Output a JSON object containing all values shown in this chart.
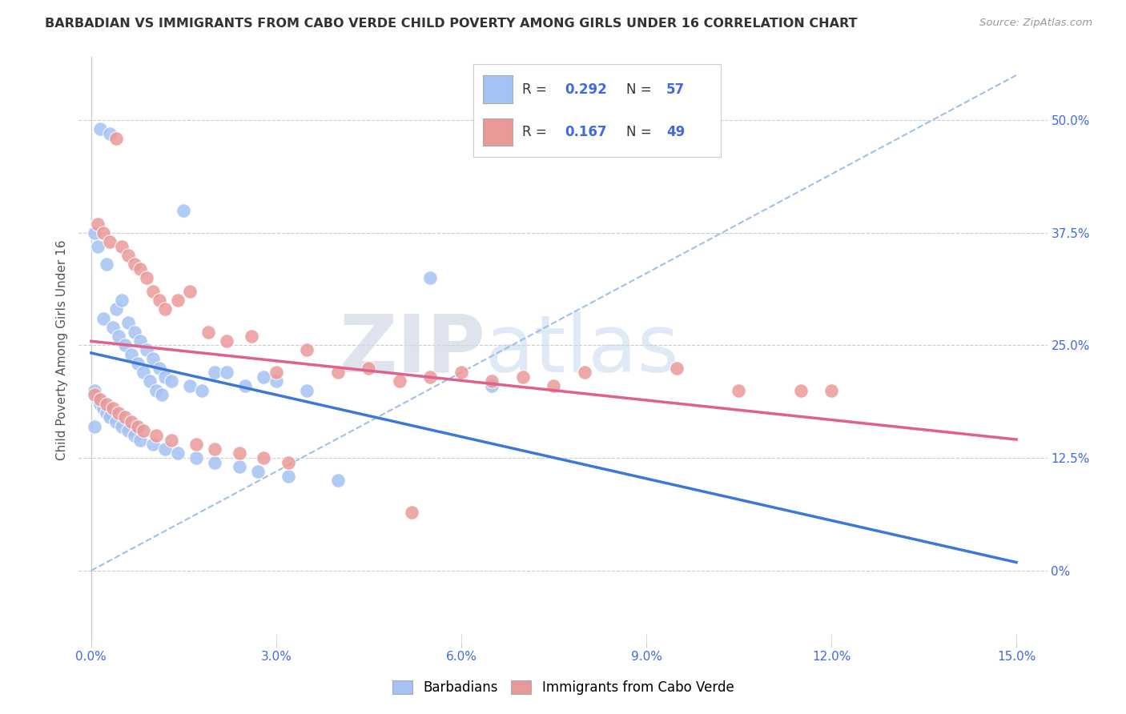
{
  "title": "BARBADIAN VS IMMIGRANTS FROM CABO VERDE CHILD POVERTY AMONG GIRLS UNDER 16 CORRELATION CHART",
  "source": "Source: ZipAtlas.com",
  "ylabel": "Child Poverty Among Girls Under 16",
  "blue_R": 0.292,
  "blue_N": 57,
  "pink_R": 0.167,
  "pink_N": 49,
  "blue_color": "#a4c2f4",
  "pink_color": "#ea9999",
  "blue_line_color": "#3c78d8",
  "pink_line_color": "#e06090",
  "dash_line_color": "#a0c0e8",
  "watermark_zip": "ZIP",
  "watermark_atlas": "atlas",
  "legend_label_blue": "Barbadians",
  "legend_label_pink": "Immigrants from Cabo Verde",
  "xlim": [
    -0.2,
    15.5
  ],
  "ylim": [
    -8,
    57
  ],
  "xticks": [
    0,
    3,
    6,
    9,
    12,
    15
  ],
  "xtick_labels": [
    "0.0%",
    "3.0%",
    "6.0%",
    "9.0%",
    "12.0%",
    "15.0%"
  ],
  "yticks": [
    0,
    12.5,
    25.0,
    37.5,
    50.0
  ],
  "ytick_labels": [
    "0%",
    "12.5%",
    "25.0%",
    "37.5%",
    "50.0%"
  ],
  "blue_x": [
    0.15,
    0.3,
    0.05,
    0.1,
    0.25,
    0.4,
    0.5,
    0.6,
    0.7,
    0.8,
    0.9,
    1.0,
    1.1,
    1.2,
    1.5,
    2.0,
    2.5,
    3.0,
    0.2,
    0.35,
    0.45,
    0.55,
    0.65,
    0.75,
    0.85,
    0.95,
    1.05,
    1.15,
    1.3,
    1.6,
    1.8,
    2.2,
    2.8,
    3.5,
    0.05,
    0.1,
    0.15,
    0.2,
    0.25,
    0.3,
    0.4,
    0.5,
    0.6,
    0.7,
    0.8,
    1.0,
    1.2,
    1.4,
    1.7,
    2.0,
    2.4,
    2.7,
    3.2,
    4.0,
    5.5,
    6.5,
    0.05
  ],
  "blue_y": [
    49.0,
    48.5,
    37.5,
    36.0,
    34.0,
    29.0,
    30.0,
    27.5,
    26.5,
    25.5,
    24.5,
    23.5,
    22.5,
    21.5,
    40.0,
    22.0,
    20.5,
    21.0,
    28.0,
    27.0,
    26.0,
    25.0,
    24.0,
    23.0,
    22.0,
    21.0,
    20.0,
    19.5,
    21.0,
    20.5,
    20.0,
    22.0,
    21.5,
    20.0,
    20.0,
    19.0,
    18.5,
    18.0,
    17.5,
    17.0,
    16.5,
    16.0,
    15.5,
    15.0,
    14.5,
    14.0,
    13.5,
    13.0,
    12.5,
    12.0,
    11.5,
    11.0,
    10.5,
    10.0,
    32.5,
    20.5,
    16.0
  ],
  "pink_x": [
    0.4,
    0.1,
    0.2,
    0.3,
    0.5,
    0.6,
    0.7,
    0.8,
    0.9,
    1.0,
    1.1,
    1.2,
    1.4,
    1.6,
    1.9,
    2.2,
    2.6,
    3.0,
    3.5,
    4.0,
    4.5,
    5.0,
    6.0,
    7.0,
    8.0,
    9.5,
    12.0,
    0.05,
    0.15,
    0.25,
    0.35,
    0.45,
    0.55,
    0.65,
    0.75,
    0.85,
    1.05,
    1.3,
    1.7,
    2.0,
    2.4,
    2.8,
    3.2,
    5.5,
    6.5,
    7.5,
    10.5,
    11.5,
    5.2
  ],
  "pink_y": [
    48.0,
    38.5,
    37.5,
    36.5,
    36.0,
    35.0,
    34.0,
    33.5,
    32.5,
    31.0,
    30.0,
    29.0,
    30.0,
    31.0,
    26.5,
    25.5,
    26.0,
    22.0,
    24.5,
    22.0,
    22.5,
    21.0,
    22.0,
    21.5,
    22.0,
    22.5,
    20.0,
    19.5,
    19.0,
    18.5,
    18.0,
    17.5,
    17.0,
    16.5,
    16.0,
    15.5,
    15.0,
    14.5,
    14.0,
    13.5,
    13.0,
    12.5,
    12.0,
    21.5,
    21.0,
    20.5,
    20.0,
    20.0,
    6.5
  ]
}
